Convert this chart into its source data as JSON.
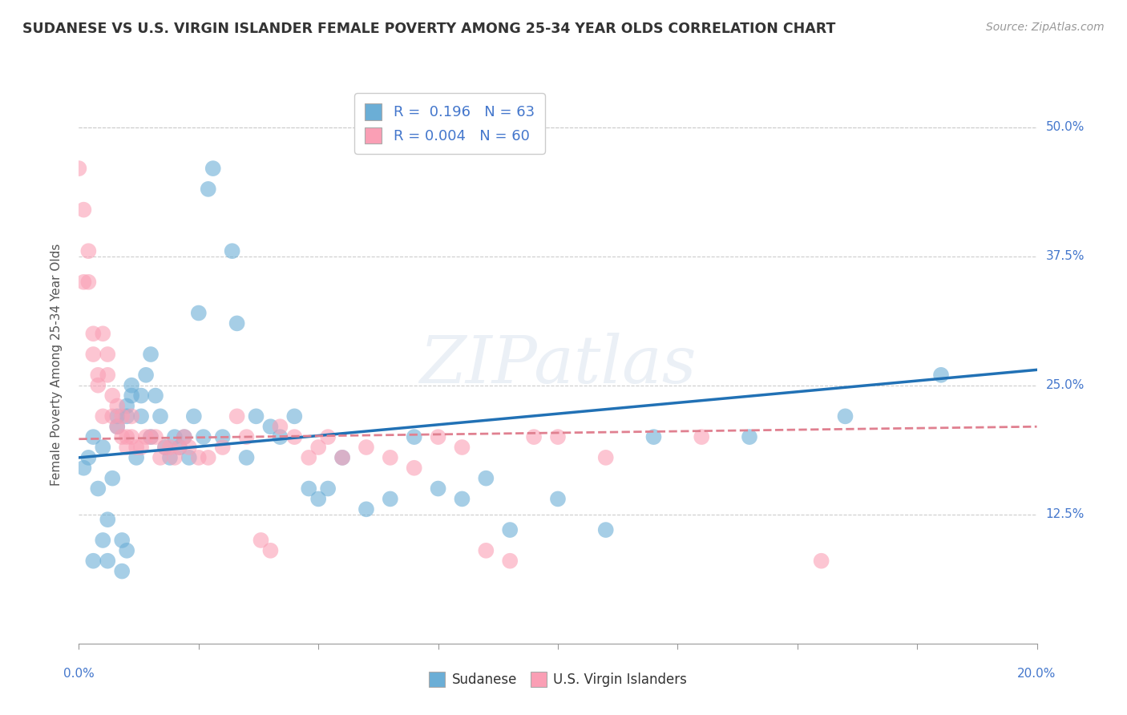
{
  "title": "SUDANESE VS U.S. VIRGIN ISLANDER FEMALE POVERTY AMONG 25-34 YEAR OLDS CORRELATION CHART",
  "source": "Source: ZipAtlas.com",
  "ylabel": "Female Poverty Among 25-34 Year Olds",
  "ytick_labels": [
    "50.0%",
    "37.5%",
    "25.0%",
    "12.5%"
  ],
  "ytick_values": [
    0.5,
    0.375,
    0.25,
    0.125
  ],
  "watermark": "ZIPatlas",
  "legend_blue_r": "0.196",
  "legend_blue_n": "63",
  "legend_pink_r": "0.004",
  "legend_pink_n": "60",
  "legend_blue_label": "Sudanese",
  "legend_pink_label": "U.S. Virgin Islanders",
  "blue_color": "#6baed6",
  "pink_color": "#fa9fb5",
  "blue_line_color": "#2171b5",
  "pink_line_color": "#e08090",
  "background_color": "#ffffff",
  "grid_color": "#cccccc",
  "title_color": "#333333",
  "axis_label_color": "#4477cc",
  "xtick_left_label": "0.0%",
  "xtick_right_label": "20.0%",
  "blue_scatter_x": [
    0.001,
    0.002,
    0.003,
    0.003,
    0.004,
    0.005,
    0.005,
    0.006,
    0.006,
    0.007,
    0.008,
    0.008,
    0.009,
    0.009,
    0.01,
    0.01,
    0.01,
    0.011,
    0.011,
    0.012,
    0.013,
    0.013,
    0.014,
    0.015,
    0.015,
    0.016,
    0.017,
    0.018,
    0.019,
    0.02,
    0.021,
    0.022,
    0.023,
    0.024,
    0.025,
    0.026,
    0.027,
    0.028,
    0.03,
    0.032,
    0.033,
    0.035,
    0.037,
    0.04,
    0.042,
    0.045,
    0.048,
    0.05,
    0.052,
    0.055,
    0.06,
    0.065,
    0.07,
    0.075,
    0.08,
    0.085,
    0.09,
    0.1,
    0.11,
    0.12,
    0.14,
    0.16,
    0.18
  ],
  "blue_scatter_y": [
    0.17,
    0.18,
    0.2,
    0.08,
    0.15,
    0.1,
    0.19,
    0.12,
    0.08,
    0.16,
    0.22,
    0.21,
    0.1,
    0.07,
    0.23,
    0.22,
    0.09,
    0.25,
    0.24,
    0.18,
    0.22,
    0.24,
    0.26,
    0.28,
    0.2,
    0.24,
    0.22,
    0.19,
    0.18,
    0.2,
    0.19,
    0.2,
    0.18,
    0.22,
    0.32,
    0.2,
    0.44,
    0.46,
    0.2,
    0.38,
    0.31,
    0.18,
    0.22,
    0.21,
    0.2,
    0.22,
    0.15,
    0.14,
    0.15,
    0.18,
    0.13,
    0.14,
    0.2,
    0.15,
    0.14,
    0.16,
    0.11,
    0.14,
    0.11,
    0.2,
    0.2,
    0.22,
    0.26
  ],
  "pink_scatter_x": [
    0.0,
    0.001,
    0.001,
    0.002,
    0.002,
    0.003,
    0.003,
    0.004,
    0.004,
    0.005,
    0.005,
    0.006,
    0.006,
    0.007,
    0.007,
    0.008,
    0.008,
    0.009,
    0.009,
    0.01,
    0.01,
    0.011,
    0.011,
    0.012,
    0.013,
    0.014,
    0.015,
    0.016,
    0.017,
    0.018,
    0.019,
    0.02,
    0.021,
    0.022,
    0.023,
    0.025,
    0.027,
    0.03,
    0.033,
    0.035,
    0.038,
    0.04,
    0.042,
    0.045,
    0.048,
    0.05,
    0.052,
    0.055,
    0.06,
    0.065,
    0.07,
    0.075,
    0.08,
    0.085,
    0.09,
    0.095,
    0.1,
    0.11,
    0.13,
    0.155
  ],
  "pink_scatter_y": [
    0.46,
    0.42,
    0.35,
    0.35,
    0.38,
    0.3,
    0.28,
    0.26,
    0.25,
    0.3,
    0.22,
    0.28,
    0.26,
    0.24,
    0.22,
    0.23,
    0.21,
    0.2,
    0.22,
    0.2,
    0.19,
    0.22,
    0.2,
    0.19,
    0.19,
    0.2,
    0.2,
    0.2,
    0.18,
    0.19,
    0.19,
    0.18,
    0.19,
    0.2,
    0.19,
    0.18,
    0.18,
    0.19,
    0.22,
    0.2,
    0.1,
    0.09,
    0.21,
    0.2,
    0.18,
    0.19,
    0.2,
    0.18,
    0.19,
    0.18,
    0.17,
    0.2,
    0.19,
    0.09,
    0.08,
    0.2,
    0.2,
    0.18,
    0.2,
    0.08
  ],
  "xlim": [
    0.0,
    0.2
  ],
  "ylim": [
    0.0,
    0.54
  ],
  "blue_trend_x": [
    0.0,
    0.2
  ],
  "blue_trend_y": [
    0.18,
    0.265
  ],
  "pink_trend_x": [
    0.0,
    0.2
  ],
  "pink_trend_y": [
    0.198,
    0.21
  ]
}
